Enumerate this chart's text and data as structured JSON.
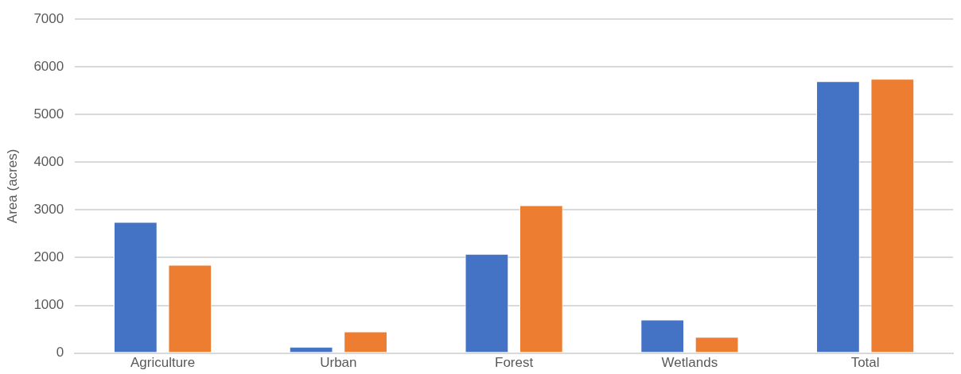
{
  "chart_data": {
    "type": "bar",
    "ylabel": "Area (acres)",
    "categories": [
      "Agriculture",
      "Urban",
      "Forest",
      "Wetlands",
      "Total"
    ],
    "series": [
      {
        "color": "#4472c4",
        "values": [
          2750,
          130,
          2080,
          700,
          5700
        ]
      },
      {
        "color": "#ed7d31",
        "values": [
          1850,
          450,
          3100,
          340,
          5750
        ]
      }
    ],
    "ylim": [
      0,
      7000
    ],
    "yticks": [
      0,
      1000,
      2000,
      3000,
      4000,
      5000,
      6000,
      7000
    ],
    "grid": "y",
    "legend": false
  }
}
